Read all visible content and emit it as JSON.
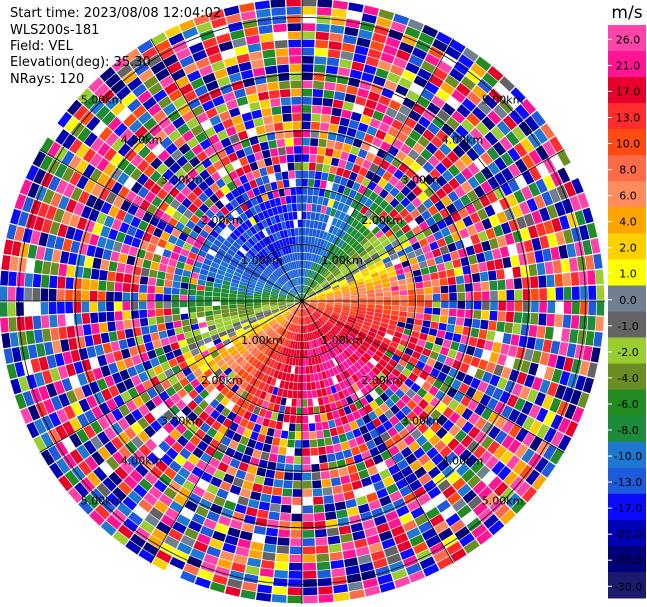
{
  "info": {
    "start_time": "Start time: 2023/08/08 12:04:02",
    "instrument": "WLS200s-181",
    "field": "Field: VEL",
    "elevation": "Elevation(deg): 35.30",
    "nrays": "NRays: 120"
  },
  "colorbar": {
    "unit": "m/s",
    "ticks": [
      "26.0",
      "21.0",
      "17.0",
      "13.0",
      "10.0",
      "8.0",
      "6.0",
      "4.0",
      "2.0",
      "1.0",
      "0.0",
      "-1.0",
      "-2.0",
      "-4.0",
      "-6.0",
      "-8.0",
      "-10.0",
      "-13.0",
      "-17.0",
      "-21.0",
      "-26.0",
      "-30.0"
    ],
    "colors": [
      "#ff44aa",
      "#ff1493",
      "#e8002a",
      "#ff2d2d",
      "#ff4a12",
      "#ff6a48",
      "#ff8c5a",
      "#ffa500",
      "#ffd000",
      "#ffff00",
      "#708090",
      "#646464",
      "#9acd32",
      "#6b8e23",
      "#228b22",
      "#1e8b3a",
      "#1e78d2",
      "#1e5adc",
      "#0a0aff",
      "#0000b4",
      "#00007a",
      "#1a1a6e"
    ]
  },
  "chart_data": {
    "type": "heatmap",
    "projection": "polar-ppi",
    "field": "VEL",
    "nrays": 120,
    "elevation_deg": 35.3,
    "range_rings_km": [
      1.0,
      2.0,
      3.0,
      4.0,
      5.0
    ],
    "ring_labels": [
      "1.00km",
      "2.00km",
      "3.00km",
      "4.00km",
      "5.00km"
    ],
    "max_range_km": 5.3,
    "wind": {
      "toward_azimuth_deg": 155,
      "peak_ms": 18,
      "clean_range_km": 2.6,
      "noisy_range_km": 3.1
    },
    "colorbar": {
      "min": -30,
      "max": 26,
      "unit": "m/s"
    }
  }
}
